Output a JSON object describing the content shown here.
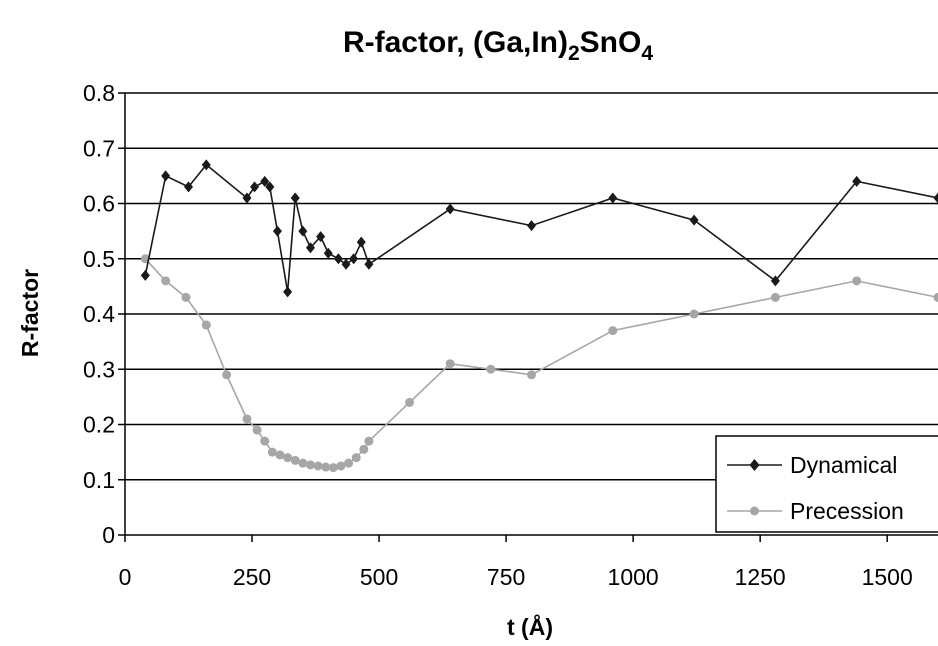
{
  "chart_data": {
    "type": "line",
    "title": {
      "prefix": "R-factor, (Ga,In)",
      "sub1": "2",
      "mid": "SnO",
      "sub2": "4"
    },
    "xlabel": "t (Å)",
    "ylabel": "R-factor",
    "xlim": [
      0,
      1600
    ],
    "ylim": [
      0,
      0.8
    ],
    "xticks": [
      0,
      250,
      500,
      750,
      1000,
      1250,
      1500
    ],
    "yticks": [
      0,
      0.1,
      0.2,
      0.3,
      0.4,
      0.5,
      0.6,
      0.7,
      0.8
    ],
    "grid": "horizontal",
    "legend_position": "bottom-right",
    "series": [
      {
        "name": "Dynamical",
        "color": "#1a1a1a",
        "marker": "diamond",
        "x": [
          40,
          80,
          125,
          160,
          240,
          255,
          275,
          285,
          300,
          320,
          335,
          350,
          365,
          385,
          400,
          420,
          435,
          450,
          465,
          480,
          640,
          800,
          960,
          1120,
          1280,
          1440,
          1600
        ],
        "y": [
          0.47,
          0.65,
          0.63,
          0.67,
          0.61,
          0.63,
          0.64,
          0.63,
          0.55,
          0.44,
          0.61,
          0.55,
          0.52,
          0.54,
          0.51,
          0.5,
          0.49,
          0.5,
          0.53,
          0.49,
          0.59,
          0.56,
          0.61,
          0.57,
          0.46,
          0.64,
          0.61
        ]
      },
      {
        "name": "Precession",
        "color": "#a6a6a6",
        "marker": "circle",
        "x": [
          40,
          80,
          120,
          160,
          200,
          240,
          260,
          275,
          290,
          305,
          320,
          335,
          350,
          365,
          380,
          395,
          410,
          425,
          440,
          455,
          470,
          480,
          560,
          640,
          720,
          800,
          960,
          1120,
          1280,
          1440,
          1600
        ],
        "y": [
          0.5,
          0.46,
          0.43,
          0.38,
          0.29,
          0.21,
          0.19,
          0.17,
          0.15,
          0.145,
          0.14,
          0.135,
          0.13,
          0.127,
          0.125,
          0.123,
          0.122,
          0.125,
          0.13,
          0.14,
          0.155,
          0.17,
          0.24,
          0.31,
          0.3,
          0.29,
          0.37,
          0.4,
          0.43,
          0.46,
          0.43
        ]
      }
    ]
  }
}
